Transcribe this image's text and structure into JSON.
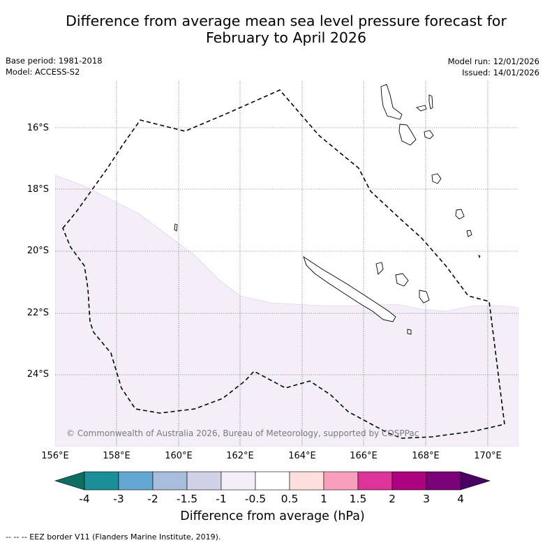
{
  "title": {
    "line1": "Difference from average mean sea level pressure forecast for",
    "line2": "February to April 2026"
  },
  "meta_left": {
    "base_period": "Base period: 1981-2018",
    "model": "Model: ACCESS-S2"
  },
  "meta_right": {
    "model_run": "Model run: 12/01/2026",
    "issued": "Issued: 14/01/2026"
  },
  "map": {
    "lat_labels": [
      "16°S",
      "18°S",
      "20°S",
      "22°S",
      "24°S"
    ],
    "lon_labels": [
      "156°E",
      "158°E",
      "160°E",
      "162°E",
      "164°E",
      "166°E",
      "168°E",
      "170°E"
    ],
    "anomaly_region": {
      "category": "-0.5 to -1",
      "color": "#f3eef7"
    },
    "copyright": "© Commonwealth of Australia 2026, Bureau of Meteorology, supported by COSPPac"
  },
  "colorbar": {
    "ticks": [
      "-4",
      "-3",
      "-2",
      "-1.5",
      "-1",
      "-0.5",
      "0.5",
      "1",
      "1.5",
      "2",
      "3",
      "4"
    ],
    "colors": [
      "#1a8f98",
      "#62a8d2",
      "#a8bcdc",
      "#d0d1e6",
      "#f3eef7",
      "#ffffff",
      "#fddfdd",
      "#f99fbd",
      "#dd3499",
      "#ad027f",
      "#7a0177"
    ],
    "low_extend_color": "#0c6e62",
    "high_extend_color": "#4a0062",
    "label": "Difference from average (hPa)"
  },
  "footer": "--  --  -- EEZ border V11 (Flanders Marine Institute, 2019)."
}
